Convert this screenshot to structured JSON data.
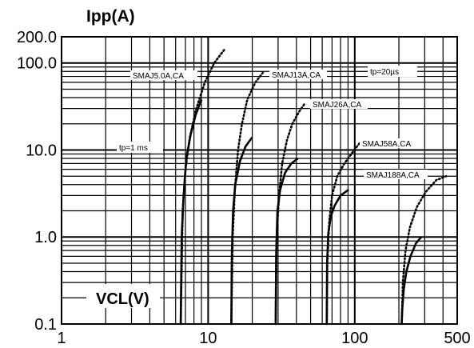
{
  "chart_data": {
    "type": "line",
    "title": "",
    "xlabel": "VCL(V)",
    "ylabel": "Ipp(A)",
    "x_scale": "log",
    "y_scale": "log",
    "xlim": [
      1,
      500
    ],
    "ylim": [
      0.1,
      200
    ],
    "grid": true,
    "x_tick_labels": [
      "1",
      "10",
      "100",
      "500"
    ],
    "x_tick_values": [
      1,
      10,
      100,
      500
    ],
    "y_tick_labels": [
      "0.1",
      "1.0",
      "10.0",
      "100.0",
      "200.0"
    ],
    "y_tick_values": [
      0.1,
      1,
      10,
      100,
      200
    ],
    "annotations": [
      "SMAJ5.0A,CA",
      "SMAJ13A,CA",
      "SMAJ26A,CA",
      "SMAJ58A,CA",
      "SMAJ188A,CA",
      "tp=20µs",
      "tp=1 ms"
    ],
    "series": [
      {
        "name": "SMAJ5.0A,CA",
        "pulse": "tp=1 ms",
        "style": "solid",
        "points": [
          [
            6.5,
            0.1
          ],
          [
            6.6,
            1
          ],
          [
            6.8,
            3
          ],
          [
            7.1,
            8
          ],
          [
            7.6,
            15
          ],
          [
            8.2,
            25
          ],
          [
            9,
            38
          ]
        ]
      },
      {
        "name": "SMAJ5.0A,CA",
        "pulse": "tp=20µs",
        "style": "dotted",
        "points": [
          [
            6.5,
            0.1
          ],
          [
            6.7,
            2
          ],
          [
            7.0,
            6
          ],
          [
            7.5,
            14
          ],
          [
            8.3,
            30
          ],
          [
            9.5,
            60
          ],
          [
            11,
            100
          ],
          [
            13,
            145
          ]
        ]
      },
      {
        "name": "SMAJ13A,CA",
        "pulse": "tp=1 ms",
        "style": "solid",
        "points": [
          [
            14.4,
            0.1
          ],
          [
            14.5,
            0.6
          ],
          [
            14.8,
            2
          ],
          [
            15.3,
            4
          ],
          [
            16.5,
            7.5
          ],
          [
            18,
            11
          ],
          [
            20,
            14
          ]
        ]
      },
      {
        "name": "SMAJ13A,CA",
        "pulse": "tp=20µs",
        "style": "dotted",
        "points": [
          [
            14.4,
            0.1
          ],
          [
            14.7,
            1
          ],
          [
            15.2,
            3.5
          ],
          [
            16,
            10
          ],
          [
            17,
            20
          ],
          [
            18.5,
            38
          ],
          [
            21,
            60
          ],
          [
            24,
            80
          ]
        ]
      },
      {
        "name": "SMAJ26A,CA",
        "pulse": "tp=1 ms",
        "style": "solid",
        "points": [
          [
            28.9,
            0.1
          ],
          [
            29.1,
            0.6
          ],
          [
            29.7,
            2
          ],
          [
            31,
            3.5
          ],
          [
            33.5,
            5.5
          ],
          [
            37,
            7
          ],
          [
            41,
            8
          ]
        ]
      },
      {
        "name": "SMAJ26A,CA",
        "pulse": "tp=20µs",
        "style": "dotted",
        "points": [
          [
            28.9,
            0.1
          ],
          [
            29.3,
            1
          ],
          [
            30.5,
            3
          ],
          [
            32,
            7
          ],
          [
            34.5,
            13
          ],
          [
            37.5,
            20
          ],
          [
            42,
            28
          ],
          [
            46,
            35
          ]
        ]
      },
      {
        "name": "SMAJ58A,CA",
        "pulse": "tp=1 ms",
        "style": "solid",
        "points": [
          [
            64.4,
            0.1
          ],
          [
            64.8,
            0.5
          ],
          [
            66,
            1.1
          ],
          [
            68.5,
            1.7
          ],
          [
            73,
            2.3
          ],
          [
            80,
            3
          ],
          [
            91,
            3.5
          ]
        ]
      },
      {
        "name": "SMAJ58A,CA",
        "pulse": "tp=20µs",
        "style": "dotted",
        "points": [
          [
            64.4,
            0.1
          ],
          [
            65,
            0.5
          ],
          [
            67,
            1.5
          ],
          [
            70,
            3
          ],
          [
            76,
            5
          ],
          [
            85,
            7
          ],
          [
            97,
            9.5
          ],
          [
            108,
            12
          ]
        ]
      },
      {
        "name": "SMAJ188A,CA",
        "pulse": "tp=1 ms",
        "style": "solid",
        "points": [
          [
            209,
            0.1
          ],
          [
            211,
            0.15
          ],
          [
            216,
            0.25
          ],
          [
            225,
            0.4
          ],
          [
            240,
            0.6
          ],
          [
            262,
            0.85
          ],
          [
            285,
            1.0
          ]
        ]
      },
      {
        "name": "SMAJ188A,CA",
        "pulse": "tp=20µs",
        "style": "dotted",
        "points": [
          [
            209,
            0.1
          ],
          [
            213,
            0.3
          ],
          [
            222,
            0.7
          ],
          [
            238,
            1.3
          ],
          [
            265,
            2.2
          ],
          [
            305,
            3.3
          ],
          [
            360,
            4.5
          ],
          [
            420,
            5
          ]
        ]
      }
    ]
  }
}
